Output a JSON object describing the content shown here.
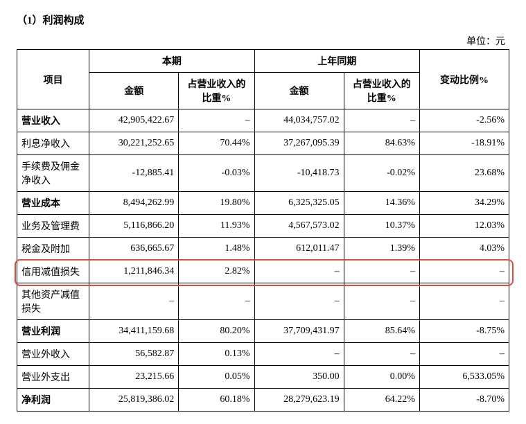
{
  "heading": "（1）利润构成",
  "unit_label": "单位：元",
  "headers": {
    "item": "项目",
    "current": "本期",
    "prior": "上年同期",
    "amount": "金额",
    "pct_rev": "占营业收入的比重%",
    "change_pct": "变动比例%"
  },
  "rows": [
    {
      "label": "营业收入",
      "bold": true,
      "a": "42,905,422.67",
      "b": "–",
      "c": "44,034,757.02",
      "d": "–",
      "e": "-2.56%"
    },
    {
      "label": "利息净收入",
      "bold": false,
      "a": "30,221,252.65",
      "b": "70.44%",
      "c": "37,267,095.39",
      "d": "84.63%",
      "e": "-18.91%"
    },
    {
      "label": "手续费及佣金净收入",
      "bold": false,
      "a": "-12,885.41",
      "b": "-0.03%",
      "c": "-10,418.73",
      "d": "-0.02%",
      "e": "23.68%"
    },
    {
      "label": "营业成本",
      "bold": true,
      "a": "8,494,262.99",
      "b": "19.80%",
      "c": "6,325,325.05",
      "d": "14.36%",
      "e": "34.29%"
    },
    {
      "label": "业务及管理费",
      "bold": false,
      "a": "5,116,866.20",
      "b": "11.93%",
      "c": "4,567,573.02",
      "d": "10.37%",
      "e": "12.03%"
    },
    {
      "label": "税金及附加",
      "bold": false,
      "a": "636,665.67",
      "b": "1.48%",
      "c": "612,011.47",
      "d": "1.39%",
      "e": "4.03%"
    },
    {
      "label": "信用减值损失",
      "bold": false,
      "highlight": true,
      "a": "1,211,846.34",
      "b": "2.82%",
      "c": "–",
      "d": "–",
      "e": "–"
    },
    {
      "label": "其他资产减值损失",
      "bold": false,
      "a": "–",
      "b": "–",
      "c": "–",
      "d": "–",
      "e": "–"
    },
    {
      "label": "营业利润",
      "bold": true,
      "a": "34,411,159.68",
      "b": "80.20%",
      "c": "37,709,431.97",
      "d": "85.64%",
      "e": "-8.75%"
    },
    {
      "label": "营业外收入",
      "bold": false,
      "a": "56,582.87",
      "b": "0.13%",
      "c": "–",
      "d": "–",
      "e": "–"
    },
    {
      "label": "营业外支出",
      "bold": false,
      "a": "23,215.66",
      "b": "0.05%",
      "c": "350.00",
      "d": "0.00%",
      "e": "6,533.05%"
    },
    {
      "label": "净利润",
      "bold": true,
      "a": "25,819,386.02",
      "b": "60.18%",
      "c": "28,279,623.19",
      "d": "64.22%",
      "e": "-8.70%"
    }
  ],
  "colors": {
    "highlight_border": "#e34a3f"
  }
}
